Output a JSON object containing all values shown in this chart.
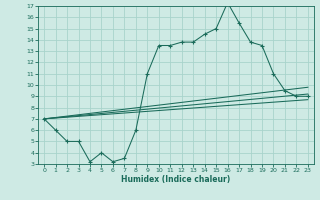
{
  "xlabel": "Humidex (Indice chaleur)",
  "bg_color": "#ceeae4",
  "grid_color": "#a8d4cc",
  "line_color": "#1a6b5a",
  "xlim": [
    -0.5,
    23.5
  ],
  "ylim": [
    3,
    17
  ],
  "xticks": [
    0,
    1,
    2,
    3,
    4,
    5,
    6,
    7,
    8,
    9,
    10,
    11,
    12,
    13,
    14,
    15,
    16,
    17,
    18,
    19,
    20,
    21,
    22,
    23
  ],
  "yticks": [
    3,
    4,
    5,
    6,
    7,
    8,
    9,
    10,
    11,
    12,
    13,
    14,
    15,
    16,
    17
  ],
  "curve1_x": [
    0,
    1,
    2,
    3,
    4,
    5,
    6,
    7,
    8,
    9,
    10,
    11,
    12,
    13,
    14,
    15,
    16,
    17,
    18,
    19,
    20,
    21,
    22,
    23
  ],
  "curve1_y": [
    7,
    6,
    5,
    5,
    3.2,
    4,
    3.2,
    3.5,
    6,
    11,
    13.5,
    13.5,
    13.8,
    13.8,
    14.5,
    15,
    17.3,
    15.5,
    13.8,
    13.5,
    11,
    9.5,
    9,
    9
  ],
  "line1_x": [
    0,
    23
  ],
  "line1_y": [
    7.0,
    9.8
  ],
  "line2_x": [
    0,
    23
  ],
  "line2_y": [
    7.0,
    9.2
  ],
  "line3_x": [
    0,
    23
  ],
  "line3_y": [
    7.0,
    8.7
  ]
}
